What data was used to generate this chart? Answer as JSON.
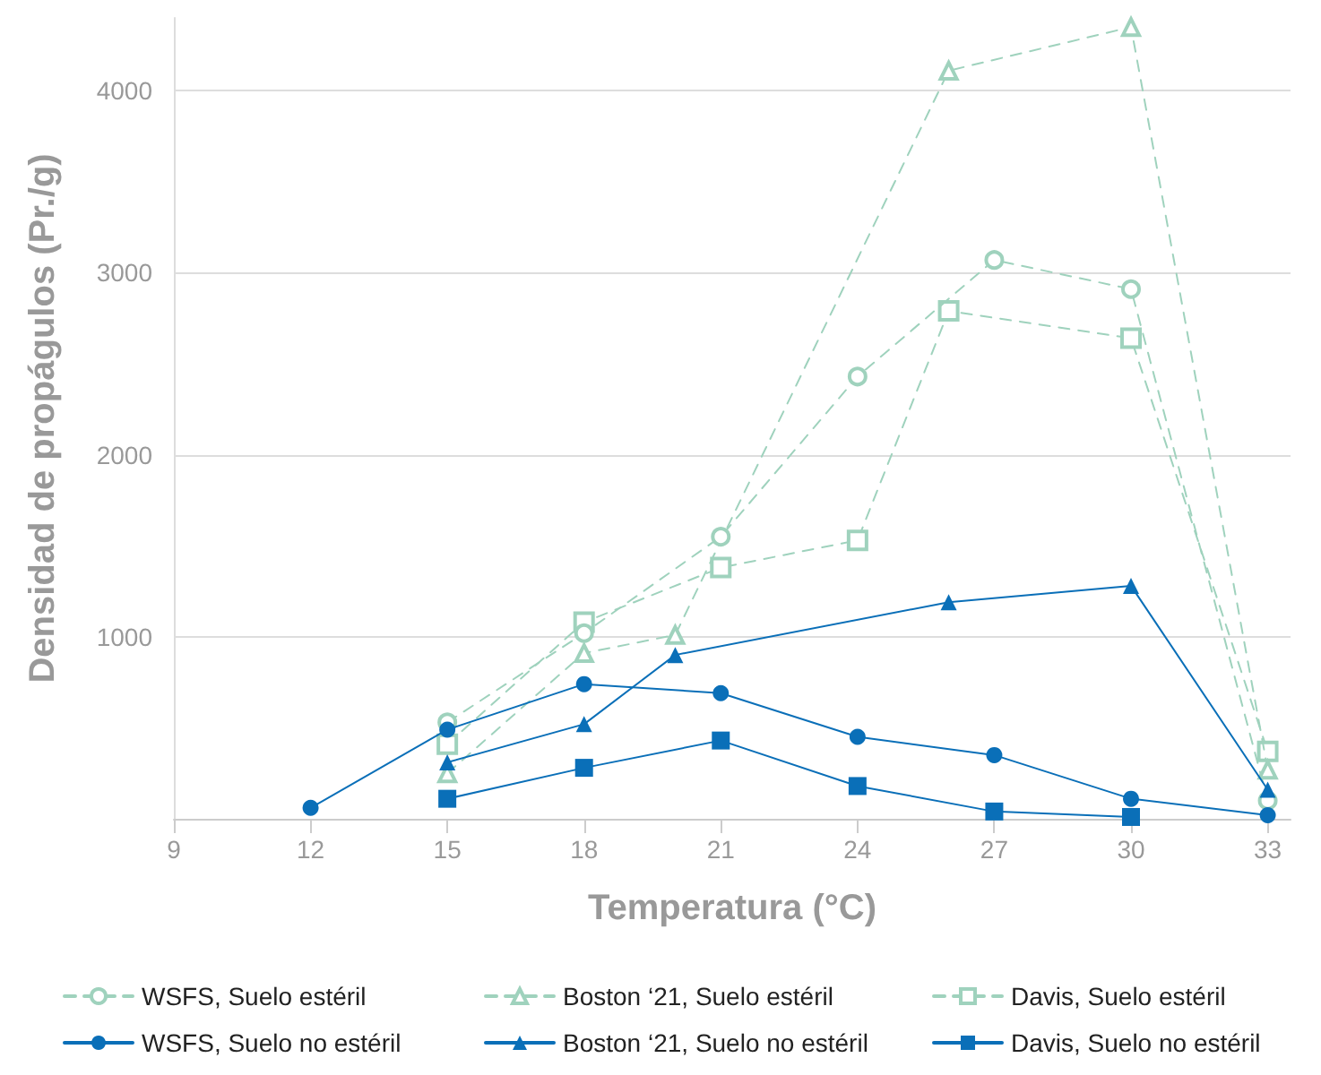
{
  "chart_data": {
    "type": "line",
    "xlabel": "Temperatura (°C)",
    "ylabel": "Densidad de propágulos (Pr./g)",
    "xlim": [
      9,
      33.5
    ],
    "xticks": [
      9,
      12,
      15,
      18,
      21,
      24,
      27,
      30,
      33
    ],
    "ylim": [
      0,
      4400
    ],
    "yticks": [
      {
        "value": 0,
        "label": null
      },
      1000,
      2000,
      3000,
      4000
    ],
    "grid": "y",
    "legend": "bottom",
    "series": [
      {
        "name": "WSFS, Suelo estéril",
        "color": "#9fd2bd",
        "marker": "circle",
        "line_style": "dashed",
        "x": [
          15,
          18,
          21,
          24,
          27,
          30,
          33
        ],
        "values": [
          530,
          1020,
          1550,
          2430,
          3070,
          2910,
          100
        ]
      },
      {
        "name": "WSFS, Suelo no estéril",
        "color": "#0a6fb8",
        "marker": "circle",
        "line_style": "solid",
        "x": [
          12,
          15,
          18,
          21,
          24,
          27,
          30,
          33
        ],
        "values": [
          60,
          490,
          740,
          690,
          450,
          350,
          110,
          20
        ]
      },
      {
        "name": "Boston ‘21, Suelo estéril",
        "color": "#9fd2bd",
        "marker": "triangle",
        "line_style": "dashed",
        "x": [
          15,
          18,
          20,
          26,
          30,
          33
        ],
        "values": [
          250,
          910,
          1010,
          4110,
          4350,
          270
        ]
      },
      {
        "name": "Boston ‘21, Suelo no estéril",
        "color": "#0a6fb8",
        "marker": "triangle",
        "line_style": "solid",
        "x": [
          15,
          18,
          20,
          26,
          30,
          33
        ],
        "values": [
          310,
          520,
          900,
          1190,
          1280,
          160
        ]
      },
      {
        "name": "Davis, Suelo estéril",
        "color": "#9fd2bd",
        "marker": "square",
        "line_style": "dashed",
        "x": [
          15,
          18,
          21,
          24,
          26,
          30,
          33
        ],
        "values": [
          410,
          1080,
          1380,
          1530,
          2790,
          2640,
          370
        ]
      },
      {
        "name": "Davis, Suelo no estéril",
        "color": "#0a6fb8",
        "marker": "square",
        "line_style": "solid",
        "x": [
          15,
          18,
          21,
          24,
          27,
          30
        ],
        "values": [
          110,
          280,
          430,
          180,
          40,
          10
        ]
      }
    ]
  }
}
